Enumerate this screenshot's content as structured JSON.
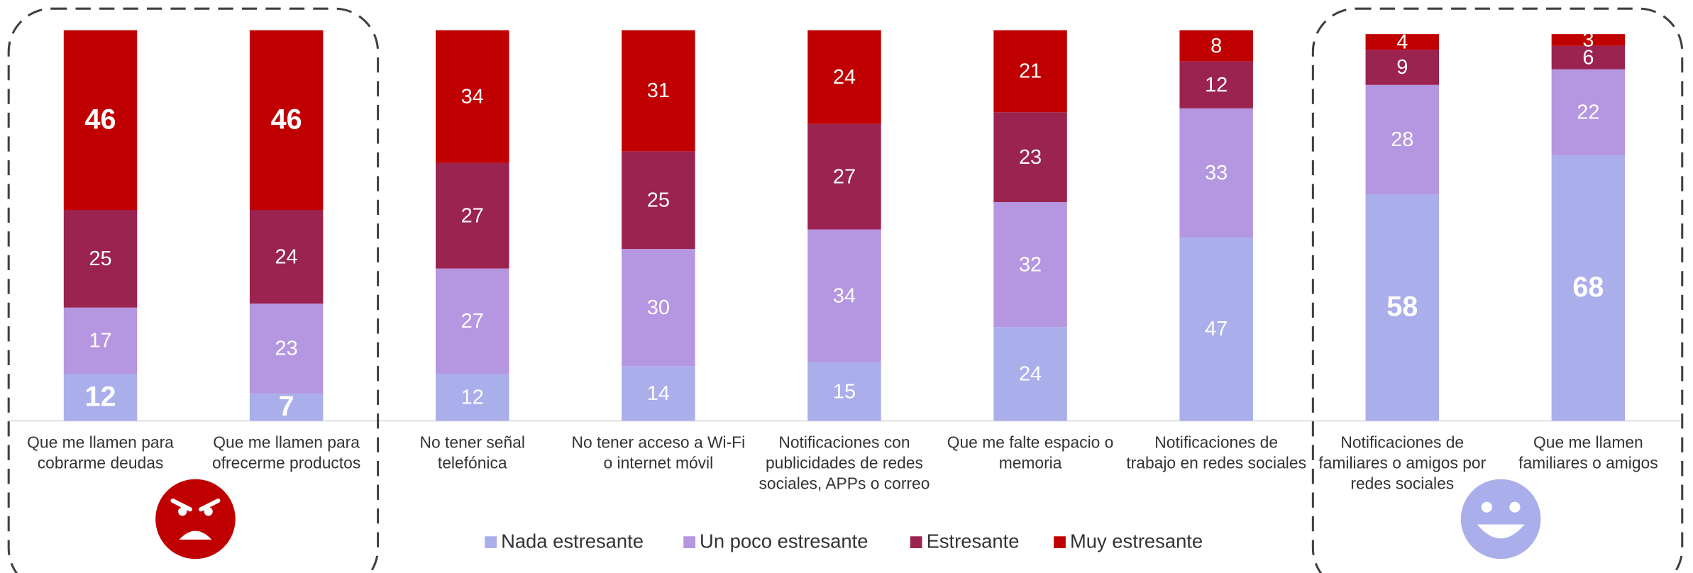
{
  "chart_data": {
    "type": "stacked_bar",
    "categories": [
      [
        "Que me llamen para",
        "cobrarme deudas"
      ],
      [
        "Que me llamen para",
        "ofrecerme productos"
      ],
      [
        "No tener señal",
        "telefónica"
      ],
      [
        "No tener acceso a Wi-Fi",
        "o internet móvil"
      ],
      [
        "Notificaciones con",
        "publicidades de redes",
        "sociales, APPs o correo"
      ],
      [
        "Que me falte espacio o",
        "memoria"
      ],
      [
        "Notificaciones de",
        "trabajo en redes sociales"
      ],
      [
        "Notificaciones de",
        "familiares o amigos por",
        "redes sociales"
      ],
      [
        "Que me llamen",
        "familiares o amigos"
      ]
    ],
    "series": [
      {
        "name": "Nada estresante",
        "color": "#aaaeeb",
        "values": [
          12,
          7,
          12,
          14,
          15,
          24,
          47,
          58,
          68
        ]
      },
      {
        "name": "Un poco estresante",
        "color": "#b596e0",
        "values": [
          17,
          23,
          27,
          30,
          34,
          32,
          33,
          28,
          22
        ]
      },
      {
        "name": "Estresante",
        "color": "#9b2350",
        "values": [
          25,
          24,
          27,
          25,
          27,
          23,
          12,
          9,
          6
        ]
      },
      {
        "name": "Muy estresante",
        "color": "#c00000",
        "values": [
          46,
          46,
          34,
          31,
          24,
          21,
          8,
          4,
          3
        ]
      }
    ],
    "ylim": [
      0,
      100
    ]
  }
}
